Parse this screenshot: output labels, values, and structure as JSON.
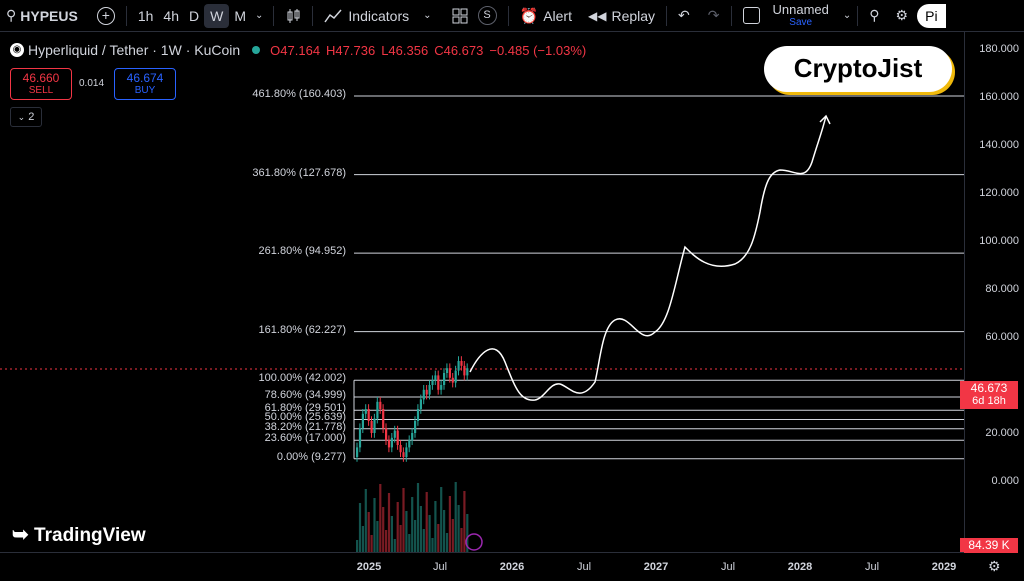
{
  "toolbar": {
    "symbol": "HYPEUS",
    "timeframes": [
      "1h",
      "4h",
      "D",
      "W",
      "M"
    ],
    "active_timeframe": "W",
    "indicators_label": "Indicators",
    "alert_label": "Alert",
    "replay_label": "Replay",
    "layout_name": "Unnamed",
    "save_label": "Save",
    "pub_label": "Pi"
  },
  "legend": {
    "title": "Hyperliquid / Tether · 1W · KuCoin",
    "open": "O47.164",
    "high": "H47.736",
    "low": "L46.356",
    "close": "C46.673",
    "change": "−0.485 (−1.03%)"
  },
  "trade": {
    "sell_price": "46.660",
    "sell_label": "SELL",
    "spread": "0.014",
    "buy_price": "46.674",
    "buy_label": "BUY",
    "indicators_count": "2"
  },
  "fib_levels": [
    {
      "label": "461.80% (160.403)",
      "value": 160.403
    },
    {
      "label": "361.80% (127.678)",
      "value": 127.678
    },
    {
      "label": "261.80% (94.952)",
      "value": 94.952
    },
    {
      "label": "161.80% (62.227)",
      "value": 62.227
    },
    {
      "label": "100.00% (42.002)",
      "value": 42.002
    },
    {
      "label": "78.60% (34.999)",
      "value": 34.999
    },
    {
      "label": "61.80% (29.501)",
      "value": 29.501
    },
    {
      "label": "50.00% (25.639)",
      "value": 25.639
    },
    {
      "label": "38.20% (21.778)",
      "value": 21.778
    },
    {
      "label": "23.60% (17.000)",
      "value": 17.0
    },
    {
      "label": "0.00% (9.277)",
      "value": 9.277
    }
  ],
  "y_ticks": [
    "180.000",
    "160.000",
    "140.000",
    "120.000",
    "100.000",
    "80.000",
    "60.000",
    "20.000",
    "0.000"
  ],
  "x_ticks": [
    "2025",
    "Jul",
    "2026",
    "Jul",
    "2027",
    "Jul",
    "2028",
    "Jul",
    "2029"
  ],
  "price_label": {
    "price": "46.673",
    "countdown": "6d 18h"
  },
  "volume_label": "84.39 K",
  "branding": {
    "tradingview": "TradingView",
    "watermark": "CryptoJist"
  },
  "colors": {
    "up": "#26a69a",
    "down": "#f23645",
    "accent": "#2962ff"
  }
}
